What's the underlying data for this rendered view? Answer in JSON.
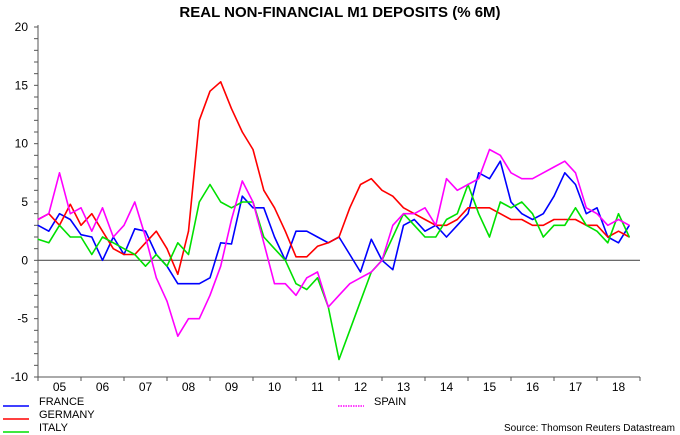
{
  "chart_data": {
    "type": "line",
    "title": "REAL NON-FINANCIAL M1 DEPOSITS (% 6M)",
    "source": "Source: Thomson Reuters Datastream",
    "xlabel": "",
    "ylabel": "",
    "ylim": [
      -10,
      20
    ],
    "yticks": [
      "-10",
      "-5",
      "0",
      "5",
      "10",
      "15",
      "20"
    ],
    "xlim": [
      2005,
      2019
    ],
    "xtick_labels": [
      "05",
      "06",
      "07",
      "08",
      "09",
      "10",
      "11",
      "12",
      "13",
      "14",
      "15",
      "16",
      "17",
      "18"
    ],
    "zero_line": true,
    "legend_placement": "bottom",
    "x": [
      2005.0,
      2005.25,
      2005.5,
      2005.75,
      2006.0,
      2006.25,
      2006.5,
      2006.75,
      2007.0,
      2007.25,
      2007.5,
      2007.75,
      2008.0,
      2008.25,
      2008.5,
      2008.75,
      2009.0,
      2009.25,
      2009.5,
      2009.75,
      2010.0,
      2010.25,
      2010.5,
      2010.75,
      2011.0,
      2011.25,
      2011.5,
      2011.75,
      2012.0,
      2012.25,
      2012.5,
      2012.75,
      2013.0,
      2013.25,
      2013.5,
      2013.75,
      2014.0,
      2014.25,
      2014.5,
      2014.75,
      2015.0,
      2015.25,
      2015.5,
      2015.75,
      2016.0,
      2016.25,
      2016.5,
      2016.75,
      2017.0,
      2017.25,
      2017.5,
      2017.75,
      2018.0,
      2018.25,
      2018.5,
      2018.75
    ],
    "series": [
      {
        "name": "FRANCE",
        "color": "#0000ff",
        "style": "solid",
        "values": [
          3,
          2.5,
          4,
          3.5,
          2.2,
          2,
          0,
          2,
          0.5,
          2.7,
          2.5,
          0.5,
          -0.5,
          -2,
          -2,
          -2,
          -1.5,
          1.5,
          1.4,
          5.5,
          4.5,
          4.5,
          2,
          0,
          2.5,
          2.5,
          2,
          1.5,
          2,
          0.5,
          -1,
          1.8,
          0,
          -0.8,
          3,
          3.5,
          2.5,
          3,
          2,
          3,
          4,
          7.5,
          7,
          8.5,
          5,
          4,
          3.5,
          4,
          5.5,
          7.5,
          6.5,
          4,
          4.5,
          2,
          1.5,
          3
        ]
      },
      {
        "name": "GERMANY",
        "color": "#ff0000",
        "style": "solid",
        "values": [
          3.5,
          4,
          3,
          4.8,
          3,
          4,
          2.5,
          1,
          0.5,
          0.5,
          1.5,
          2.5,
          1,
          -1.2,
          2.5,
          12,
          14.5,
          15.3,
          13,
          11,
          9.5,
          6,
          4.5,
          2.5,
          0.3,
          0.3,
          1.2,
          1.5,
          2,
          4.5,
          6.5,
          7,
          6,
          5.5,
          4.5,
          4,
          3.5,
          3,
          3,
          3.5,
          4.5,
          4.5,
          4.5,
          4,
          3.5,
          3.5,
          3,
          3,
          3.5,
          3.5,
          3.5,
          3,
          3,
          2,
          2.5,
          2
        ]
      },
      {
        "name": "ITALY",
        "color": "#00e000",
        "style": "solid",
        "values": [
          1.8,
          1.5,
          3,
          2,
          2,
          0.5,
          2,
          1.5,
          1,
          0.5,
          -0.5,
          0.5,
          -0.5,
          1.5,
          0.5,
          5,
          6.5,
          5,
          4.5,
          5,
          5,
          2,
          1,
          0,
          -2,
          -2.5,
          -1.5,
          -4,
          -8.5,
          -6,
          -3.5,
          -1,
          0,
          2,
          4,
          3,
          2,
          2,
          3.5,
          4,
          6.5,
          4,
          2,
          5,
          4.5,
          5,
          4,
          2,
          3,
          3,
          4.5,
          3,
          2.5,
          1.5,
          4,
          2
        ]
      },
      {
        "name": "SPAIN",
        "color": "#ff00ff",
        "style": "dotted",
        "values": [
          3.5,
          4,
          7.5,
          4,
          4.5,
          2.5,
          4.5,
          2,
          3,
          5,
          2,
          -1.5,
          -3.5,
          -6.5,
          -5,
          -5,
          -3,
          -0.5,
          3.5,
          6.8,
          5,
          1.5,
          -2,
          -2,
          -3,
          -1.5,
          -1,
          -4,
          -3,
          -2,
          -1.5,
          -1,
          0,
          3,
          4,
          4,
          4.5,
          3,
          7,
          6,
          6.5,
          7,
          9.5,
          9,
          7.5,
          7,
          7,
          7.5,
          8,
          8.5,
          7.5,
          4.5,
          4,
          3,
          3.5,
          3
        ]
      }
    ]
  }
}
